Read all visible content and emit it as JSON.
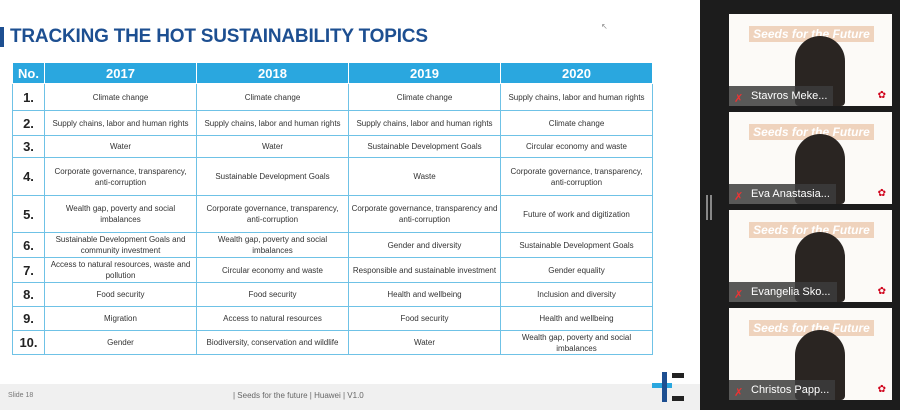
{
  "slide": {
    "title": "TRACKING THE HOT SUSTAINABILITY TOPICS",
    "table": {
      "headers": [
        "No.",
        "2017",
        "2018",
        "2019",
        "2020"
      ],
      "rows": [
        [
          "1.",
          "Climate change",
          "Climate change",
          "Climate change",
          "Supply chains, labor and human rights"
        ],
        [
          "2.",
          "Supply chains, labor and human rights",
          "Supply chains, labor and human rights",
          "Supply chains, labor and human rights",
          "Climate change"
        ],
        [
          "3.",
          "Water",
          "Water",
          "Sustainable Development Goals",
          "Circular economy and waste"
        ],
        [
          "4.",
          "Corporate governance, transparency, anti-corruption",
          "Sustainable Development Goals",
          "Waste",
          "Corporate governance, transparency, anti-corruption"
        ],
        [
          "5.",
          "Wealth gap, poverty and social imbalances",
          "Corporate governance, transparency, anti-corruption",
          "Corporate governance, transparency and anti-corruption",
          "Future of work and digitization"
        ],
        [
          "6.",
          "Sustainable Development Goals and community investment",
          "Wealth gap, poverty and social imbalances",
          "Gender and diversity",
          "Sustainable Development Goals"
        ],
        [
          "7.",
          "Access to natural resources, waste and pollution",
          "Circular economy and waste",
          "Responsible and sustainable investment",
          "Gender equality"
        ],
        [
          "8.",
          "Food security",
          "Food security",
          "Health and wellbeing",
          "Inclusion and diversity"
        ],
        [
          "9.",
          "Migration",
          "Access to natural resources",
          "Food security",
          "Health and wellbeing"
        ],
        [
          "10.",
          "Gender",
          "Biodiversity, conservation and wildlife",
          "Water",
          "Wealth gap, poverty and social imbalances"
        ]
      ]
    },
    "footer": {
      "slide_number": "Slide 18",
      "text": "| Seeds for the future | Huawei | V1.0"
    }
  },
  "participants": [
    {
      "name": "Stavros Meke...",
      "banner": "Seeds for the Future"
    },
    {
      "name": "Eva Anastasia...",
      "banner": "Seeds for the Future"
    },
    {
      "name": "Evangelia Sko...",
      "banner": "Seeds for the Future"
    },
    {
      "name": "Christos Papp...",
      "banner": "Seeds for the Future"
    }
  ],
  "colors": {
    "accent": "#2aa7df",
    "title": "#1d4f91",
    "muted_icon": "#e33333"
  }
}
